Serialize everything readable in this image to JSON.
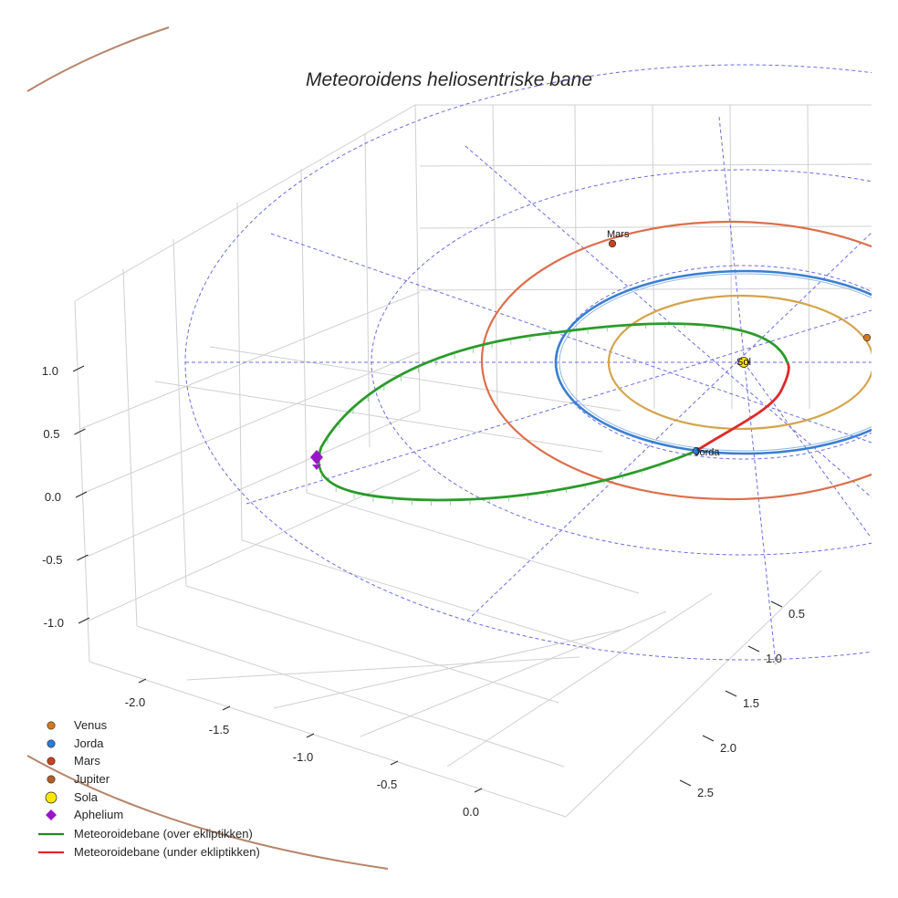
{
  "chart_data": {
    "type": "line3d",
    "title": "Meteoroidens heliosentriske bane",
    "x_ticks": [
      "-2.0",
      "-1.5",
      "-1.0",
      "-0.5",
      "0.0"
    ],
    "y_ticks": [
      "0.5",
      "1.0",
      "1.5",
      "2.0",
      "2.5"
    ],
    "z_ticks": [
      "1.0",
      "0.5",
      "0.0",
      "-0.5",
      "-1.0"
    ],
    "legend": [
      "Venus",
      "Jorda",
      "Mars",
      "Jupiter",
      "Sola",
      "Aphelium",
      "Meteoroidebane (over ekliptikken)",
      "Meteoroidebane (under ekliptikken)"
    ],
    "series": [
      {
        "name": "Venus",
        "kind": "orbit",
        "radius_au": 0.72,
        "color": "#d4a44c"
      },
      {
        "name": "Jorda",
        "kind": "orbit",
        "radius_au": 1.0,
        "color": "#3a7fd0"
      },
      {
        "name": "Mars",
        "kind": "orbit",
        "radius_au": 1.52,
        "color": "#dc6f4c"
      },
      {
        "name": "Jupiter",
        "kind": "orbit",
        "radius_au": 5.2,
        "color": "#b5856b"
      },
      {
        "name": "Meteoroidebane (over ekliptikken)",
        "kind": "path",
        "color": "#2a9a2a"
      },
      {
        "name": "Meteoroidebane (under ekliptikken)",
        "kind": "path",
        "color": "#e02828"
      }
    ],
    "markers": [
      {
        "name": "Sola",
        "color": "#ffe800"
      },
      {
        "name": "Aphelium",
        "color": "#9a16c8"
      }
    ]
  },
  "bodies": {
    "venus": "Venus",
    "earth": "Jorda",
    "mars": "Mars",
    "sun": "Sol"
  }
}
